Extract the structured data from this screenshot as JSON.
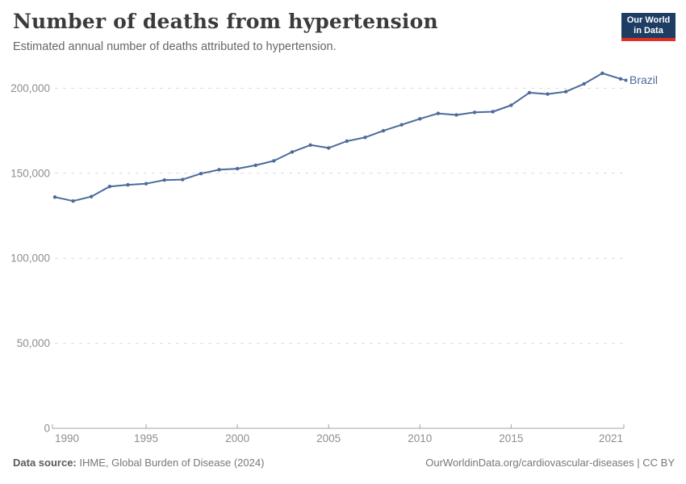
{
  "header": {
    "title": "Number of deaths from hypertension",
    "subtitle": "Estimated annual number of deaths attributed to hypertension.",
    "logo_line1": "Our World",
    "logo_line2": "in Data"
  },
  "chart_data": {
    "type": "line",
    "title": "Number of deaths from hypertension",
    "xlabel": "",
    "ylabel": "",
    "xlim": [
      1990,
      2021
    ],
    "ylim": [
      0,
      210000
    ],
    "x_ticks": [
      1990,
      1995,
      2000,
      2005,
      2010,
      2015,
      2021
    ],
    "y_ticks": [
      0,
      50000,
      100000,
      150000,
      200000
    ],
    "y_tick_labels": [
      "0",
      "50,000",
      "100,000",
      "150,000",
      "200,000"
    ],
    "grid": "horizontal-dashed",
    "legend_position": "end-of-line-label",
    "series": [
      {
        "name": "Brazil",
        "color": "#4c6a9c",
        "x": [
          1990,
          1991,
          1992,
          1993,
          1994,
          1995,
          1996,
          1997,
          1998,
          1999,
          2000,
          2001,
          2002,
          2003,
          2004,
          2005,
          2006,
          2007,
          2008,
          2009,
          2010,
          2011,
          2012,
          2013,
          2014,
          2015,
          2016,
          2017,
          2018,
          2019,
          2020,
          2021
        ],
        "values": [
          136000,
          133700,
          136300,
          142200,
          143200,
          143900,
          146000,
          146300,
          149800,
          152100,
          152700,
          154700,
          157300,
          162500,
          166600,
          164900,
          168900,
          171100,
          175000,
          178500,
          182000,
          185200,
          184300,
          185800,
          186200,
          190000,
          197400,
          196600,
          198000,
          202600,
          208800,
          205500
        ]
      }
    ]
  },
  "entity_label": "Brazil",
  "footer": {
    "datasource_label": "Data source:",
    "datasource_value": " IHME, Global Burden of Disease (2024)",
    "link": "OurWorldinData.org/cardiovascular-diseases | CC BY"
  },
  "colors": {
    "line": "#4c6a9c",
    "grid": "#dcdcdc",
    "axis": "#a3a3a3",
    "tick_text": "#8e8e8e",
    "logo_bg": "#1d3d63",
    "logo_red": "#dc2f25"
  }
}
